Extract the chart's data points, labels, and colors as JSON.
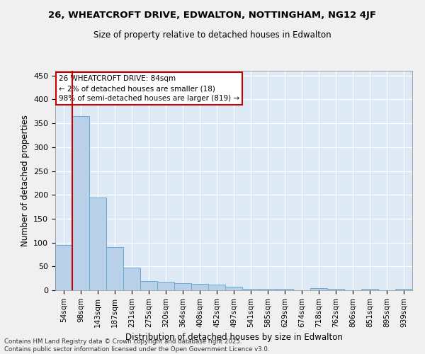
{
  "title_line1": "26, WHEATCROFT DRIVE, EDWALTON, NOTTINGHAM, NG12 4JF",
  "title_line2": "Size of property relative to detached houses in Edwalton",
  "xlabel": "Distribution of detached houses by size in Edwalton",
  "ylabel": "Number of detached properties",
  "bin_labels": [
    "54sqm",
    "98sqm",
    "143sqm",
    "187sqm",
    "231sqm",
    "275sqm",
    "320sqm",
    "364sqm",
    "408sqm",
    "452sqm",
    "497sqm",
    "541sqm",
    "585sqm",
    "629sqm",
    "674sqm",
    "718sqm",
    "762sqm",
    "806sqm",
    "851sqm",
    "895sqm",
    "939sqm"
  ],
  "bar_values": [
    95,
    365,
    195,
    90,
    47,
    20,
    18,
    15,
    13,
    12,
    8,
    3,
    3,
    3,
    0,
    4,
    3,
    0,
    3,
    0,
    3
  ],
  "bar_color": "#b8d0e8",
  "bar_edge_color": "#6aaad4",
  "bg_color": "#ddeaf6",
  "grid_color": "#ffffff",
  "annotation_text": "26 WHEATCROFT DRIVE: 84sqm\n← 2% of detached houses are smaller (18)\n98% of semi-detached houses are larger (819) →",
  "annotation_box_color": "#ffffff",
  "annotation_box_edge_color": "#cc0000",
  "red_line_color": "#cc0000",
  "ylim": [
    0,
    460
  ],
  "yticks": [
    0,
    50,
    100,
    150,
    200,
    250,
    300,
    350,
    400,
    450
  ],
  "footer_line1": "Contains HM Land Registry data © Crown copyright and database right 2025.",
  "footer_line2": "Contains public sector information licensed under the Open Government Licence v3.0.",
  "fig_bg_color": "#f0f0f0"
}
